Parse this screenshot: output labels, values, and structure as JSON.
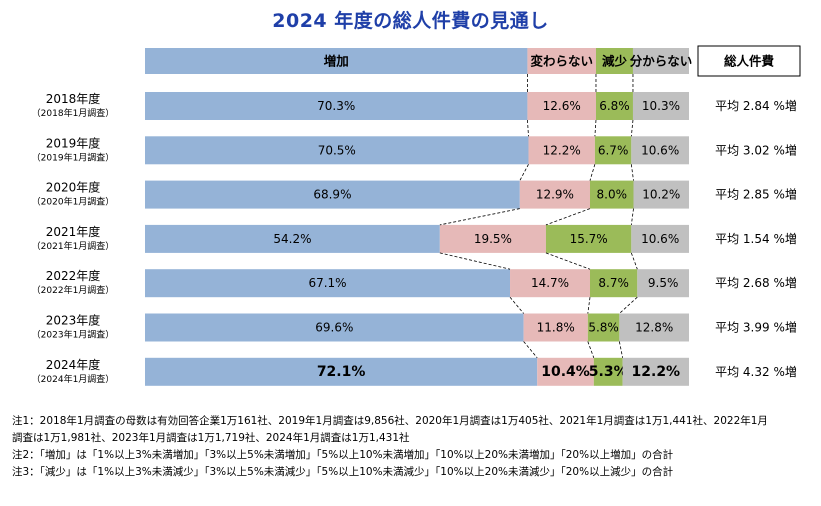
{
  "chart_data": {
    "type": "bar",
    "stacked": true,
    "orientation": "horizontal",
    "title": "2024 年度の総人件費の見通し",
    "legend": [
      "増加",
      "変わらない",
      "減少",
      "分からない"
    ],
    "colors": [
      "#95b3d7",
      "#e6b9b8",
      "#9bbb59",
      "#c0c0c0"
    ],
    "categories": [
      {
        "year": "2018年度",
        "survey": "（2018年1月調査）"
      },
      {
        "year": "2019年度",
        "survey": "（2019年1月調査）"
      },
      {
        "year": "2020年度",
        "survey": "（2020年1月調査）"
      },
      {
        "year": "2021年度",
        "survey": "（2021年1月調査）"
      },
      {
        "year": "2022年度",
        "survey": "（2022年1月調査）"
      },
      {
        "year": "2023年度",
        "survey": "（2023年1月調査）"
      },
      {
        "year": "2024年度",
        "survey": "（2024年1月調査）"
      }
    ],
    "series": [
      {
        "name": "増加",
        "values": [
          70.3,
          70.5,
          68.9,
          54.2,
          67.1,
          69.6,
          72.1
        ]
      },
      {
        "name": "変わらない",
        "values": [
          12.6,
          12.2,
          12.9,
          19.5,
          14.7,
          11.8,
          10.4
        ]
      },
      {
        "name": "減少",
        "values": [
          6.8,
          6.7,
          8.0,
          15.7,
          8.7,
          5.8,
          5.3
        ]
      },
      {
        "name": "分からない",
        "values": [
          10.3,
          10.6,
          10.2,
          10.6,
          9.5,
          12.8,
          12.2
        ]
      }
    ],
    "total_header": "総人件費",
    "total_labels": [
      "平均 2.84 %増",
      "平均 3.02 %増",
      "平均 2.85 %増",
      "平均 1.54 %増",
      "平均 2.68 %増",
      "平均 3.99 %増",
      "平均 4.32 %増"
    ],
    "highlight_last": true,
    "xlim": [
      0,
      100
    ]
  },
  "notes": [
    "注1：2018年1月調査の母数は有効回答企業1万161社、2019年1月調査は9,856社、2020年1月調査は1万405社、2021年1月調査は1万1,441社、2022年1月",
    "調査は1万1,981社、2023年1月調査は1万1,719社、2024年1月調査は1万1,431社",
    "注2：「増加」は「1%以上3%未満増加」「3%以上5%未満増加」「5%以上10%未満増加」「10%以上20%未満増加」「20%以上増加」の合計",
    "注3：「減少」は「1%以上3%未満減少」「3%以上5%未満減少」「5%以上10%未満減少」「10%以上20%未満減少」「20%以上減少」の合計"
  ]
}
